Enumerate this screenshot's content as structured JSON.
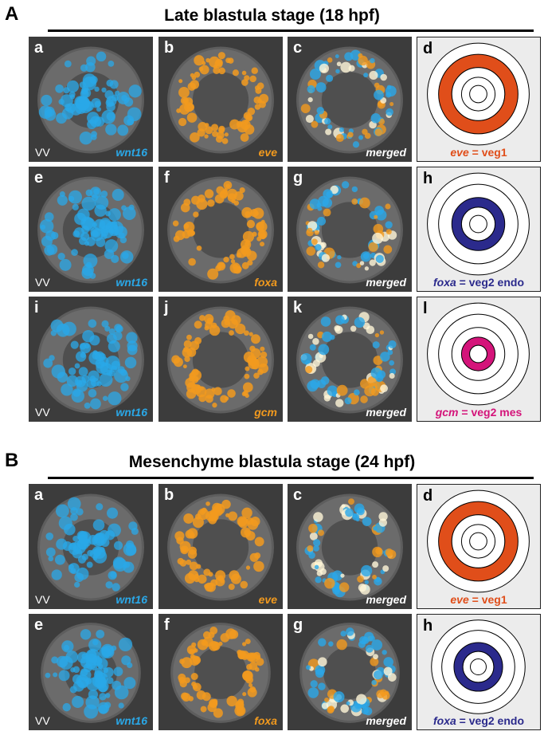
{
  "figure": {
    "sections": [
      {
        "letter": "A",
        "title": "Late blastula stage (18 hpf)",
        "rows": [
          {
            "panels": [
              {
                "letter": "a",
                "kind": "blue",
                "label": "wnt16",
                "vv": "VV"
              },
              {
                "letter": "b",
                "kind": "orange",
                "label": "eve"
              },
              {
                "letter": "c",
                "kind": "merged",
                "label": "merged"
              }
            ],
            "diagram": {
              "letter": "d",
              "gene": "eve",
              "eq": " = ",
              "region": "veg1",
              "color": "#e04e1a",
              "ring": "veg1"
            }
          },
          {
            "panels": [
              {
                "letter": "e",
                "kind": "blue",
                "label": "wnt16",
                "vv": "VV"
              },
              {
                "letter": "f",
                "kind": "orange",
                "label": "foxa"
              },
              {
                "letter": "g",
                "kind": "merged",
                "label": "merged"
              }
            ],
            "diagram": {
              "letter": "h",
              "gene": "foxa",
              "eq": " = ",
              "region": "veg2 endo",
              "color": "#2b2a8c",
              "ring": "veg2endo"
            }
          },
          {
            "panels": [
              {
                "letter": "i",
                "kind": "blue",
                "label": "wnt16",
                "vv": "VV"
              },
              {
                "letter": "j",
                "kind": "orange",
                "label": "gcm"
              },
              {
                "letter": "k",
                "kind": "merged",
                "label": "merged"
              }
            ],
            "diagram": {
              "letter": "l",
              "gene": "gcm",
              "eq": " = ",
              "region": "veg2 mes",
              "color": "#d4147a",
              "ring": "veg2mes"
            }
          }
        ]
      },
      {
        "letter": "B",
        "title": "Mesenchyme blastula stage (24 hpf)",
        "rows": [
          {
            "panels": [
              {
                "letter": "a",
                "kind": "blue",
                "label": "wnt16",
                "vv": "VV"
              },
              {
                "letter": "b",
                "kind": "orange",
                "label": "eve"
              },
              {
                "letter": "c",
                "kind": "merged",
                "label": "merged"
              }
            ],
            "diagram": {
              "letter": "d",
              "gene": "eve",
              "eq": " = ",
              "region": "veg1",
              "color": "#e04e1a",
              "ring": "veg1"
            }
          },
          {
            "panels": [
              {
                "letter": "e",
                "kind": "blue",
                "label": "wnt16",
                "vv": "VV"
              },
              {
                "letter": "f",
                "kind": "orange",
                "label": "foxa"
              },
              {
                "letter": "g",
                "kind": "merged",
                "label": "merged"
              }
            ],
            "diagram": {
              "letter": "h",
              "gene": "foxa",
              "eq": " = ",
              "region": "veg2 endo",
              "color": "#2b2a8c",
              "ring": "veg2endo"
            }
          }
        ]
      }
    ],
    "colors": {
      "wnt16_blue": "#2aa8e8",
      "stain_orange": "#f29a1e",
      "panel_bg": "#3c3c3c",
      "diagram_bg": "#ececec"
    }
  }
}
